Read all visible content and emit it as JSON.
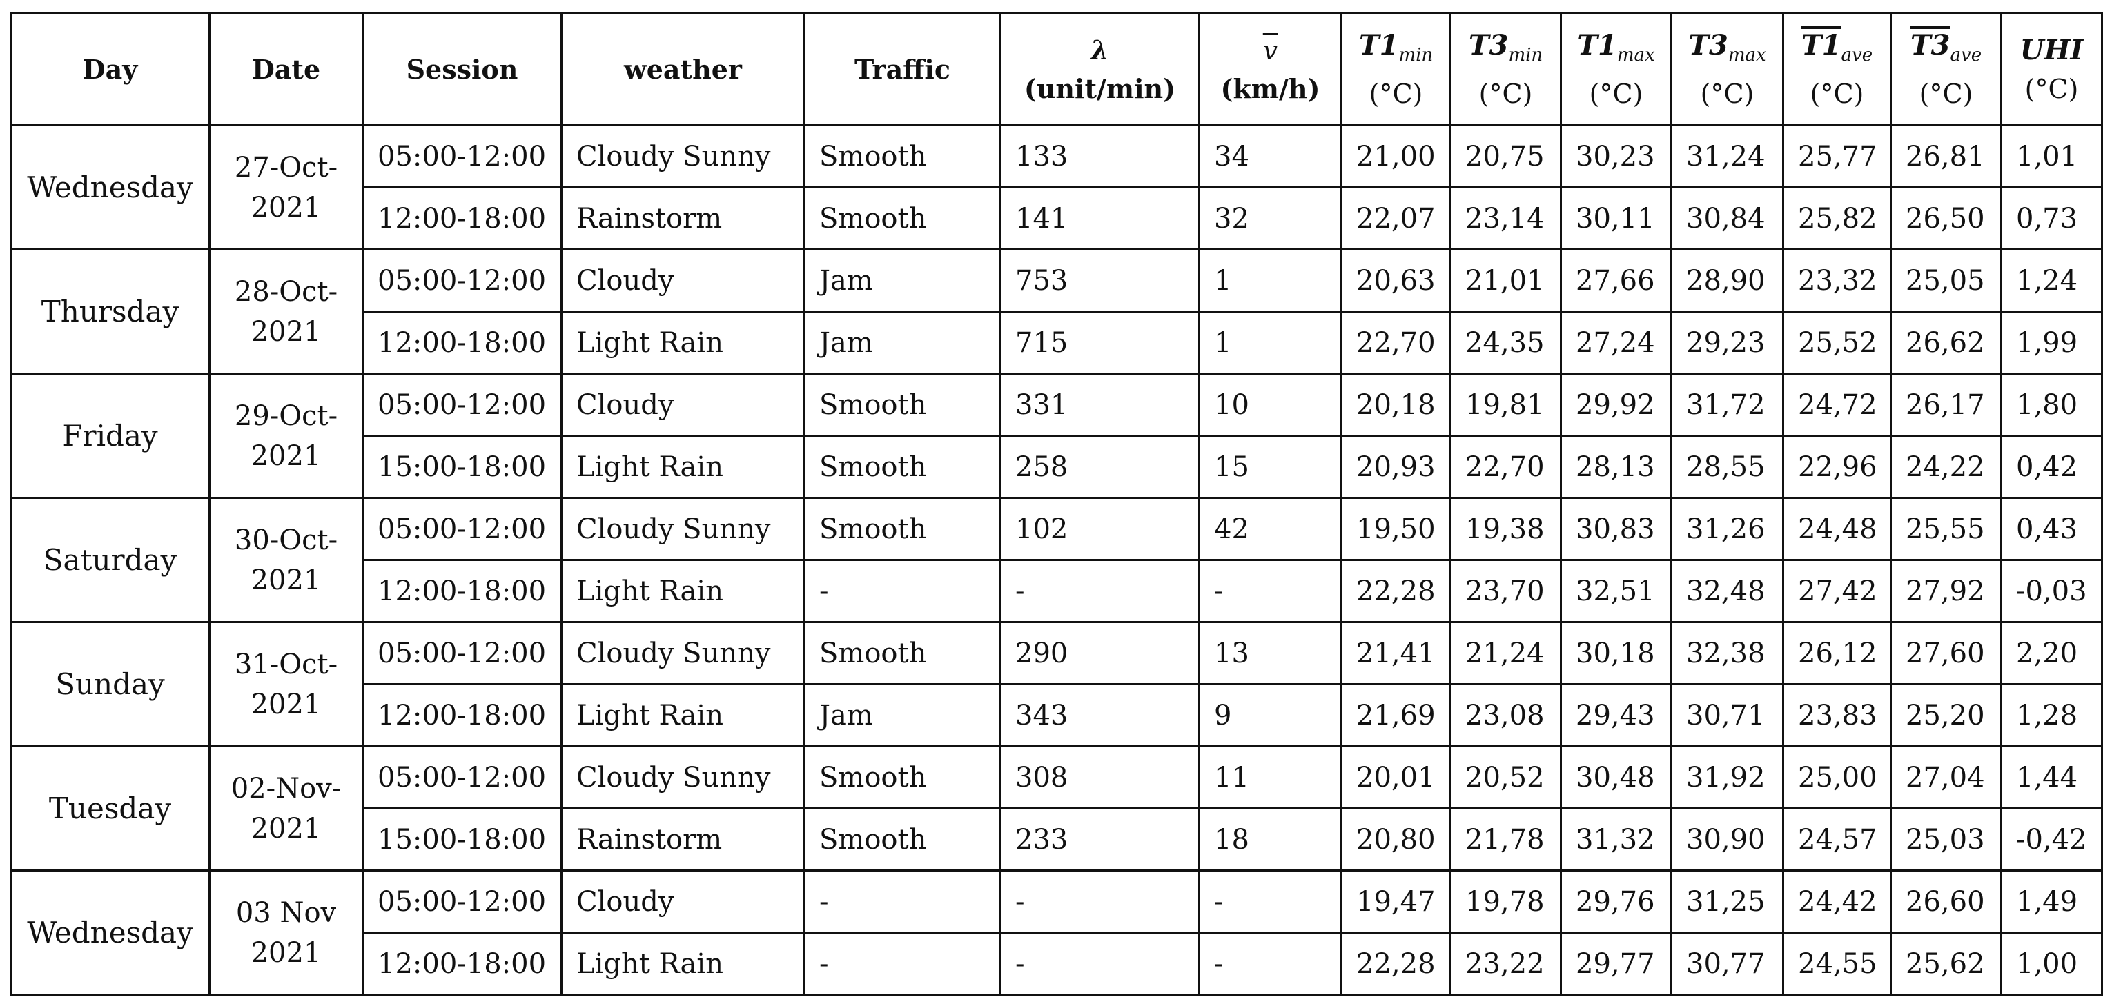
{
  "headers": {
    "day": "Day",
    "date": "Date",
    "session": "Session",
    "weather": "weather",
    "traffic": "Traffic",
    "lambda_sym": "λ",
    "lambda_unit": "(unit/min)",
    "v_sym": "v",
    "v_unit": "(km/h)",
    "t1min_base": "T1",
    "t1min_sub": "min",
    "t1min_unit": "(°C)",
    "t3min_base": "T3",
    "t3min_sub": "min",
    "t3min_unit": "(°C)",
    "t1max_base": "T1",
    "t1max_sub": "max",
    "t1max_unit": "(°C)",
    "t3max_base": "T3",
    "t3max_sub": "max",
    "t3max_unit": "(°C)",
    "t1ave_base": "T1",
    "t1ave_sub": "ave",
    "t1ave_unit": "(°C)",
    "t3ave_base": "T3",
    "t3ave_sub": "ave",
    "t3ave_unit": "(°C)",
    "uhi_sym": "UHI",
    "uhi_unit": "(°C)"
  },
  "groups": [
    {
      "day": "Wednesday",
      "date_line1": "27-Oct-",
      "date_line2": "2021",
      "rows": [
        {
          "session": "05:00-12:00",
          "weather": "Cloudy Sunny",
          "traffic": "Smooth",
          "lambda": "133",
          "v": "34",
          "t1min": "21,00",
          "t3min": "20,75",
          "t1max": "30,23",
          "t3max": "31,24",
          "t1ave": "25,77",
          "t3ave": "26,81",
          "uhi": "1,01"
        },
        {
          "session": "12:00-18:00",
          "weather": "Rainstorm",
          "traffic": "Smooth",
          "lambda": "141",
          "v": "32",
          "t1min": "22,07",
          "t3min": "23,14",
          "t1max": "30,11",
          "t3max": "30,84",
          "t1ave": "25,82",
          "t3ave": "26,50",
          "uhi": "0,73"
        }
      ]
    },
    {
      "day": "Thursday",
      "date_line1": "28-Oct-",
      "date_line2": "2021",
      "rows": [
        {
          "session": "05:00-12:00",
          "weather": "Cloudy",
          "traffic": "Jam",
          "lambda": "753",
          "v": "1",
          "t1min": "20,63",
          "t3min": "21,01",
          "t1max": "27,66",
          "t3max": "28,90",
          "t1ave": "23,32",
          "t3ave": "25,05",
          "uhi": "1,24"
        },
        {
          "session": "12:00-18:00",
          "weather": "Light Rain",
          "traffic": "Jam",
          "lambda": "715",
          "v": "1",
          "t1min": "22,70",
          "t3min": "24,35",
          "t1max": "27,24",
          "t3max": "29,23",
          "t1ave": "25,52",
          "t3ave": "26,62",
          "uhi": "1,99"
        }
      ]
    },
    {
      "day": "Friday",
      "date_line1": "29-Oct-",
      "date_line2": "2021",
      "rows": [
        {
          "session": "05:00-12:00",
          "weather": "Cloudy",
          "traffic": "Smooth",
          "lambda": "331",
          "v": "10",
          "t1min": "20,18",
          "t3min": "19,81",
          "t1max": "29,92",
          "t3max": "31,72",
          "t1ave": "24,72",
          "t3ave": "26,17",
          "uhi": "1,80"
        },
        {
          "session": "15:00-18:00",
          "weather": "Light Rain",
          "traffic": "Smooth",
          "lambda": "258",
          "v": "15",
          "t1min": "20,93",
          "t3min": "22,70",
          "t1max": "28,13",
          "t3max": "28,55",
          "t1ave": "22,96",
          "t3ave": "24,22",
          "uhi": "0,42"
        }
      ]
    },
    {
      "day": "Saturday",
      "date_line1": "30-Oct-",
      "date_line2": "2021",
      "rows": [
        {
          "session": "05:00-12:00",
          "weather": "Cloudy Sunny",
          "traffic": "Smooth",
          "lambda": "102",
          "v": "42",
          "t1min": "19,50",
          "t3min": "19,38",
          "t1max": "30,83",
          "t3max": "31,26",
          "t1ave": "24,48",
          "t3ave": "25,55",
          "uhi": "0,43"
        },
        {
          "session": "12:00-18:00",
          "weather": "Light Rain",
          "traffic": "-",
          "lambda": "-",
          "v": "-",
          "t1min": "22,28",
          "t3min": "23,70",
          "t1max": "32,51",
          "t3max": "32,48",
          "t1ave": "27,42",
          "t3ave": "27,92",
          "uhi": "-0,03"
        }
      ]
    },
    {
      "day": "Sunday",
      "date_line1": "31-Oct-",
      "date_line2": "2021",
      "rows": [
        {
          "session": "05:00-12:00",
          "weather": "Cloudy Sunny",
          "traffic": "Smooth",
          "lambda": "290",
          "v": "13",
          "t1min": "21,41",
          "t3min": "21,24",
          "t1max": "30,18",
          "t3max": "32,38",
          "t1ave": "26,12",
          "t3ave": "27,60",
          "uhi": "2,20"
        },
        {
          "session": "12:00-18:00",
          "weather": "Light Rain",
          "traffic": "Jam",
          "lambda": "343",
          "v": "9",
          "t1min": "21,69",
          "t3min": "23,08",
          "t1max": "29,43",
          "t3max": "30,71",
          "t1ave": "23,83",
          "t3ave": "25,20",
          "uhi": "1,28"
        }
      ]
    },
    {
      "day": "Tuesday",
      "date_line1": "02-Nov-",
      "date_line2": "2021",
      "rows": [
        {
          "session": "05:00-12:00",
          "weather": "Cloudy Sunny",
          "traffic": "Smooth",
          "lambda": "308",
          "v": "11",
          "t1min": "20,01",
          "t3min": "20,52",
          "t1max": "30,48",
          "t3max": "31,92",
          "t1ave": "25,00",
          "t3ave": "27,04",
          "uhi": "1,44"
        },
        {
          "session": "15:00-18:00",
          "weather": "Rainstorm",
          "traffic": "Smooth",
          "lambda": "233",
          "v": "18",
          "t1min": "20,80",
          "t3min": "21,78",
          "t1max": "31,32",
          "t3max": "30,90",
          "t1ave": "24,57",
          "t3ave": "25,03",
          "uhi": "-0,42"
        }
      ]
    },
    {
      "day": "Wednesday",
      "date_line1": "03 Nov",
      "date_line2": "2021",
      "rows": [
        {
          "session": "05:00-12:00",
          "weather": "Cloudy",
          "traffic": "-",
          "lambda": "-",
          "v": "-",
          "t1min": "19,47",
          "t3min": "19,78",
          "t1max": "29,76",
          "t3max": "31,25",
          "t1ave": "24,42",
          "t3ave": "26,60",
          "uhi": "1,49"
        },
        {
          "session": "12:00-18:00",
          "weather": "Light Rain",
          "traffic": "-",
          "lambda": "-",
          "v": "-",
          "t1min": "22,28",
          "t3min": "23,22",
          "t1max": "29,77",
          "t3max": "30,77",
          "t1ave": "24,55",
          "t3ave": "25,62",
          "uhi": "1,00"
        }
      ]
    }
  ]
}
